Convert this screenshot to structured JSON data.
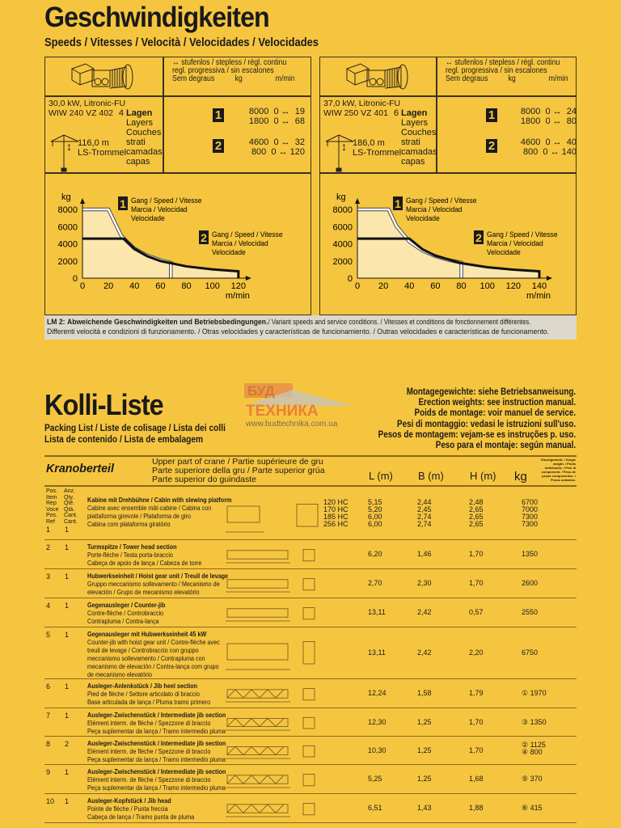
{
  "speeds": {
    "title": "Geschwindigkeiten",
    "subtitle": "Speeds / Vitesses / Velocità / Velocidades / Velocidades",
    "panels": [
      {
        "cond_line1": "↔ stufenlos / stepless / régl. continu",
        "cond_line2": "regl. progressiva / sin escalones",
        "cond_line3": "Sem degraus",
        "kg_label": "kg",
        "mmin_label": "m/min",
        "motor_line1": "30,0 kW, Litronic-FU",
        "motor_line2": "WIW 240 VZ 402",
        "layers_count": "4",
        "layers": [
          "Lagen",
          "Layers",
          "Couches",
          "strati",
          "camadas",
          "capas"
        ],
        "rope_length": "116,0 m",
        "drum": "LS-Trommel",
        "gear1": {
          "badge": "1",
          "rows": "8000  0 ↔  19\n1800  0 ↔  68"
        },
        "gear2": {
          "badge": "2",
          "rows": "4600  0 ↔  32\n800  0 ↔ 120"
        }
      },
      {
        "cond_line1": "↔ stufenlos / stepless / régl. continu",
        "cond_line2": "regl. progressiva / sin escalones",
        "cond_line3": "Sem degraus",
        "kg_label": "kg",
        "mmin_label": "m/min",
        "motor_line1": "37,0 kW, Litronic-FU",
        "motor_line2": "WIW 250 VZ 401",
        "layers_count": "6",
        "layers": [
          "Lagen",
          "Layers",
          "Couches",
          "strati",
          "camadas",
          "capas"
        ],
        "rope_length": "186,0 m",
        "drum": "LS-Trommel",
        "gear1": {
          "badge": "1",
          "rows": "8000  0 ↔  24\n1800  0 ↔  80"
        },
        "gear2": {
          "badge": "2",
          "rows": "4600  0 ↔  40\n800  0 ↔ 140"
        }
      }
    ]
  },
  "chart_data": [
    {
      "type": "line",
      "ylabel": "kg",
      "xlabel": "m/min",
      "xlim": [
        0,
        120
      ],
      "ylim": [
        0,
        8000
      ],
      "xticks": [
        0,
        20,
        40,
        60,
        80,
        100,
        120
      ],
      "yticks": [
        0,
        2000,
        4000,
        6000,
        8000
      ],
      "series": [
        {
          "name": "1",
          "label": [
            "Gang / Speed / Vitesse",
            "Marcia / Velocidad",
            "Velocidade"
          ],
          "points": [
            [
              0,
              8000
            ],
            [
              20,
              8000
            ],
            [
              30,
              4890
            ],
            [
              40,
              3440
            ],
            [
              50,
              2620
            ],
            [
              60,
              2100
            ],
            [
              68,
              1800
            ],
            [
              68,
              0
            ]
          ]
        },
        {
          "name": "2",
          "label": [
            "Gang / Speed / Vitesse",
            "Marcia / Velocidad",
            "Velocidade"
          ],
          "points": [
            [
              0,
              4600
            ],
            [
              32,
              4600
            ],
            [
              40,
              3430
            ],
            [
              50,
              2550
            ],
            [
              60,
              2000
            ],
            [
              80,
              1370
            ],
            [
              100,
              1020
            ],
            [
              120,
              800
            ],
            [
              120,
              0
            ]
          ]
        }
      ]
    },
    {
      "type": "line",
      "ylabel": "kg",
      "xlabel": "m/min",
      "xlim": [
        0,
        140
      ],
      "ylim": [
        0,
        8000
      ],
      "xticks": [
        0,
        20,
        40,
        60,
        80,
        100,
        120,
        140
      ],
      "yticks": [
        0,
        2000,
        4000,
        6000,
        8000
      ],
      "series": [
        {
          "name": "1",
          "label": [
            "Gang / Speed / Vitesse",
            "Marcia / Velocidad",
            "Velocidade"
          ],
          "points": [
            [
              0,
              8000
            ],
            [
              24,
              8000
            ],
            [
              30,
              6060
            ],
            [
              40,
              4250
            ],
            [
              50,
              3220
            ],
            [
              60,
              2570
            ],
            [
              70,
              2120
            ],
            [
              80,
              1800
            ],
            [
              80,
              0
            ]
          ]
        },
        {
          "name": "2",
          "label": [
            "Gang / Speed / Vitesse",
            "Marcia / Velocidad",
            "Velocidade"
          ],
          "points": [
            [
              0,
              4600
            ],
            [
              40,
              4600
            ],
            [
              50,
              3370
            ],
            [
              60,
              2610
            ],
            [
              80,
              1740
            ],
            [
              100,
              1270
            ],
            [
              120,
              990
            ],
            [
              140,
              800
            ],
            [
              140,
              0
            ]
          ]
        }
      ]
    }
  ],
  "lm2": {
    "label": "LM 2:",
    "line1_bold": "Abweichende Geschwindigkeiten und Betriebsbedingungen.",
    "line1_rest": " / Variant speeds and service conditions. / Vitesses et conditions de fonctionnement différentes.",
    "line2": "Differenti velocità e condizioni di funzionamento. / Otras velocidades y características de funcionamiento. / Outras velocidades e características de funcionamento."
  },
  "kolli": {
    "title": "Kolli-Liste",
    "subtitle1": "Packing List / Liste de colisage / Lista dei colli",
    "subtitle2": "Lista de contenido / Lista de embalagem",
    "watermark": {
      "line1": "БУД",
      "line2": "ТЕХНИКА",
      "url": "www.budtechnika.com.ua"
    },
    "notes": [
      "Montagegewichte: siehe Betriebsanweisung.",
      "Erection weights: see instruction manual.",
      "Poids de montage: voir manuel de service.",
      "Pesi di montaggio: vedasi le istruzioni sull'uso.",
      "Pesos de montagem: vejam-se es instruções p. uso.",
      "Peso para el montaje: según manual."
    ],
    "section": "Kranoberteil",
    "section_desc": [
      "Upper part of crane / Partie supérieure de gru",
      "Parte superiore della gru / Parte superior grúa",
      "Parte superior do guindaste"
    ],
    "col_L": "L (m)",
    "col_B": "B (m)",
    "col_H": "H (m)",
    "col_kg": "kg",
    "kg_note": "Einzelgewicht. / Single weight. / Poids individuels. / Pesi di componenti. / Peso de peças componentes. / Pesos unitarios.",
    "pos_header": "Pos.\nItem\nRep\nVoce\nPos.\nRef",
    "qty_header": "Anz.\nQty.\nQté.\nQtà.\nCant.\nCant.",
    "rows": [
      {
        "pos": "1",
        "qty": "1",
        "title": "Kabine mit Drehbühne / Cabin with slewing platform",
        "desc": "Cabine avec ensemble mât-cabine / Cabina con\npiattaforma girevole / Plataforma de giro\nCabina com plataforma giratório",
        "variant": "120 HC\n170 HC\n185 HC\n256 HC",
        "L": "5,15\n5,20\n6,00\n6,00",
        "B": "2,44\n2,45\n2,74\n2,74",
        "H": "2,48\n2,65\n2,65\n2,65",
        "kg": "6700\n7000\n7300\n7300"
      },
      {
        "pos": "2",
        "qty": "1",
        "title": "Turmspitze / Tower head section",
        "desc": "Porte-flèche / Testa porta-braccio\nCabeça de apoio de lança / Cabeza de torre",
        "variant": "",
        "L": "6,20",
        "B": "1,46",
        "H": "1,70",
        "kg": "1350"
      },
      {
        "pos": "3",
        "qty": "1",
        "title": "Hubwerkseinheit / Hoist gear unit / Treuil de levage",
        "desc": "Gruppo meccanismo sollevamento / Mecanismo de\nelevación / Grupo de mecanismo elevatório",
        "variant": "",
        "L": "2,70",
        "B": "2,30",
        "H": "1,70",
        "kg": "2600"
      },
      {
        "pos": "4",
        "qty": "1",
        "title": "Gegenausleger / Counter-jib",
        "desc": "Contre-flèche / Controbraccio\nContrapluma / Contra-lança",
        "variant": "",
        "L": "13,11",
        "B": "2,42",
        "H": "0,57",
        "kg": "2550"
      },
      {
        "pos": "5",
        "qty": "1",
        "title": "Gegenausleger mit Hubwerkseinheit 45 kW",
        "desc": "Counter-jib with hoist gear unit / Contre-flèche avec\ntreuil de levage / Controbraccio con gruppo\nmeccanismo sollevamento / Contrapluma con\nmecanismo de elevación / Contra-lança com grupo\nde mecanismo elevatório",
        "variant": "",
        "L": "13,11",
        "B": "2,42",
        "H": "2,20",
        "kg": "6750"
      },
      {
        "pos": "6",
        "qty": "1",
        "title": "Ausleger-Anlenkstück / Jib heel section",
        "desc": "Pied de flèche / Settore articolato di braccio\nBase articulada de lança / Pluma tramo primero",
        "variant": "",
        "L": "12,24",
        "B": "1,58",
        "H": "1,79",
        "kg": "① 1970"
      },
      {
        "pos": "7",
        "qty": "1",
        "title": "Ausleger-Zwischenstück / Intermediate jib section",
        "desc": "Elément interm. de flèche / Spezzone di braccio\nPeça suplementar da lança / Tramo intermedio pluma",
        "variant": "",
        "L": "12,30",
        "B": "1,25",
        "H": "1,70",
        "kg": "③ 1350"
      },
      {
        "pos": "8",
        "qty": "2",
        "title": "Ausleger-Zwischenstück / Intermediate jib section",
        "desc": "Elément interm. de flèche / Spezzone di braccio\nPeça suplementar da lança / Tramo intermedio pluma",
        "variant": "",
        "L": "10,30",
        "B": "1,25",
        "H": "1,70",
        "kg": "② 1125\n④ 800"
      },
      {
        "pos": "9",
        "qty": "1",
        "title": "Ausleger-Zwischenstück / Intermediate jib section",
        "desc": "Elément interm. de flèche / Spezzone di braccio\nPeça suplementar da lança / Tramo intermedio pluma",
        "variant": "",
        "L": "5,25",
        "B": "1,25",
        "H": "1,68",
        "kg": "⑤ 370"
      },
      {
        "pos": "10",
        "qty": "1",
        "title": "Ausleger-Kopfstück / Jib head",
        "desc": "Pointe de flèche / Punta freccia\nCabeça de lança / Tramo punta de pluma",
        "variant": "",
        "L": "6,51",
        "B": "1,43",
        "H": "1,88",
        "kg": "⑥ 415"
      }
    ]
  }
}
